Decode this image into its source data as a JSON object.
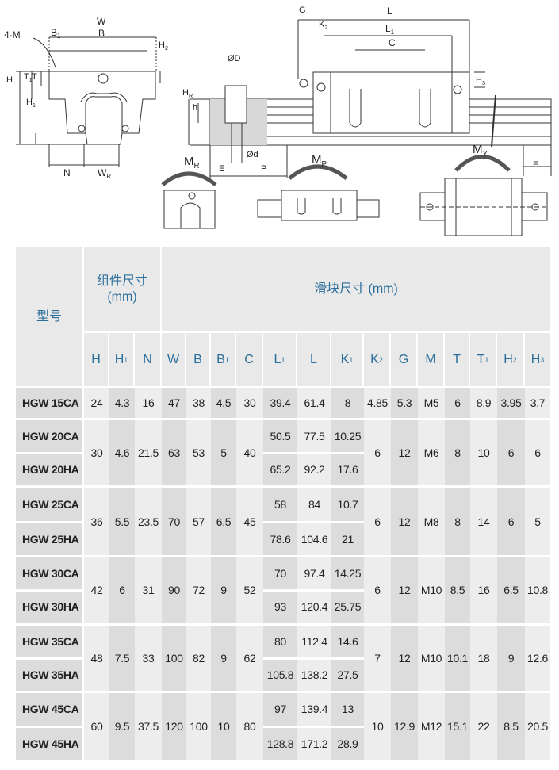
{
  "drawing": {
    "labels": {
      "W": {
        "t": "W",
        "s": ""
      },
      "B": {
        "t": "B",
        "s": ""
      },
      "B1": {
        "t": "B",
        "s": "1"
      },
      "M4": {
        "t": "4-M",
        "s": ""
      },
      "H2": {
        "t": "H",
        "s": "2"
      },
      "T": {
        "t": "T",
        "s": ""
      },
      "T1": {
        "t": "T",
        "s": "1"
      },
      "H": {
        "t": "H",
        "s": ""
      },
      "H1": {
        "t": "H",
        "s": "1"
      },
      "N": {
        "t": "N",
        "s": ""
      },
      "WR": {
        "t": "W",
        "s": "R"
      },
      "OD": {
        "t": "ØD",
        "s": ""
      },
      "h": {
        "t": "h",
        "s": ""
      },
      "HR": {
        "t": "H",
        "s": "R"
      },
      "Od": {
        "t": "Ød",
        "s": ""
      },
      "E1": {
        "t": "E",
        "s": ""
      },
      "P": {
        "t": "P",
        "s": ""
      },
      "G": {
        "t": "G",
        "s": ""
      },
      "L": {
        "t": "L",
        "s": ""
      },
      "K2": {
        "t": "K",
        "s": "2"
      },
      "L1": {
        "t": "L",
        "s": "1"
      },
      "C": {
        "t": "C",
        "s": ""
      },
      "H3": {
        "t": "H",
        "s": "3"
      },
      "E2": {
        "t": "E",
        "s": ""
      },
      "MR": {
        "t": "M",
        "s": "R"
      },
      "MP": {
        "t": "M",
        "s": "P"
      },
      "MY": {
        "t": "M",
        "s": "Y"
      }
    }
  },
  "table": {
    "model_header": "型号",
    "group1_header": [
      "组件尺寸",
      "(mm)"
    ],
    "group2_header": "滑块尺寸 (mm)",
    "columns": [
      {
        "t": "H",
        "s": ""
      },
      {
        "t": "H",
        "s": "1"
      },
      {
        "t": "N",
        "s": ""
      },
      {
        "t": "W",
        "s": ""
      },
      {
        "t": "B",
        "s": ""
      },
      {
        "t": "B",
        "s": "1"
      },
      {
        "t": "C",
        "s": ""
      },
      {
        "t": "L",
        "s": "1"
      },
      {
        "t": "L",
        "s": ""
      },
      {
        "t": "K",
        "s": "1"
      },
      {
        "t": "K",
        "s": "2"
      },
      {
        "t": "G",
        "s": ""
      },
      {
        "t": "M",
        "s": ""
      },
      {
        "t": "T",
        "s": ""
      },
      {
        "t": "T",
        "s": "1"
      },
      {
        "t": "H",
        "s": "2"
      },
      {
        "t": "H",
        "s": "3"
      }
    ],
    "groups": [
      {
        "models": [
          {
            "name": "HGW 15CA",
            "L1": "39.4",
            "L": "61.4",
            "K1": "8"
          }
        ],
        "H": "24",
        "H1": "4.3",
        "N": "16",
        "W": "47",
        "B": "38",
        "B1": "4.5",
        "C": "30",
        "K2": "4.85",
        "G": "5.3",
        "M": "M5",
        "T": "6",
        "T1": "8.9",
        "H2": "3.95",
        "H3": "3.7"
      },
      {
        "models": [
          {
            "name": "HGW 20CA",
            "L1": "50.5",
            "L": "77.5",
            "K1": "10.25"
          },
          {
            "name": "HGW 20HA",
            "L1": "65.2",
            "L": "92.2",
            "K1": "17.6"
          }
        ],
        "H": "30",
        "H1": "4.6",
        "N": "21.5",
        "W": "63",
        "B": "53",
        "B1": "5",
        "C": "40",
        "K2": "6",
        "G": "12",
        "M": "M6",
        "T": "8",
        "T1": "10",
        "H2": "6",
        "H3": "6"
      },
      {
        "models": [
          {
            "name": "HGW 25CA",
            "L1": "58",
            "L": "84",
            "K1": "10.7"
          },
          {
            "name": "HGW 25HA",
            "L1": "78.6",
            "L": "104.6",
            "K1": "21"
          }
        ],
        "H": "36",
        "H1": "5.5",
        "N": "23.5",
        "W": "70",
        "B": "57",
        "B1": "6.5",
        "C": "45",
        "K2": "6",
        "G": "12",
        "M": "M8",
        "T": "8",
        "T1": "14",
        "H2": "6",
        "H3": "5"
      },
      {
        "models": [
          {
            "name": "HGW 30CA",
            "L1": "70",
            "L": "97.4",
            "K1": "14.25"
          },
          {
            "name": "HGW 30HA",
            "L1": "93",
            "L": "120.4",
            "K1": "25.75"
          }
        ],
        "H": "42",
        "H1": "6",
        "N": "31",
        "W": "90",
        "B": "72",
        "B1": "9",
        "C": "52",
        "K2": "6",
        "G": "12",
        "M": "M10",
        "T": "8.5",
        "T1": "16",
        "H2": "6.5",
        "H3": "10.8"
      },
      {
        "models": [
          {
            "name": "HGW 35CA",
            "L1": "80",
            "L": "112.4",
            "K1": "14.6"
          },
          {
            "name": "HGW 35HA",
            "L1": "105.8",
            "L": "138.2",
            "K1": "27.5"
          }
        ],
        "H": "48",
        "H1": "7.5",
        "N": "33",
        "W": "100",
        "B": "82",
        "B1": "9",
        "C": "62",
        "K2": "7",
        "G": "12",
        "M": "M10",
        "T": "10.1",
        "T1": "18",
        "H2": "9",
        "H3": "12.6"
      },
      {
        "models": [
          {
            "name": "HGW 45CA",
            "L1": "97",
            "L": "139.4",
            "K1": "13"
          },
          {
            "name": "HGW 45HA",
            "L1": "128.8",
            "L": "171.2",
            "K1": "28.9"
          }
        ],
        "H": "60",
        "H1": "9.5",
        "N": "37.5",
        "W": "120",
        "B": "100",
        "B1": "10",
        "C": "80",
        "K2": "10",
        "G": "12.9",
        "M": "M12",
        "T": "15.1",
        "T1": "22",
        "H2": "8.5",
        "H3": "20.5"
      }
    ]
  }
}
